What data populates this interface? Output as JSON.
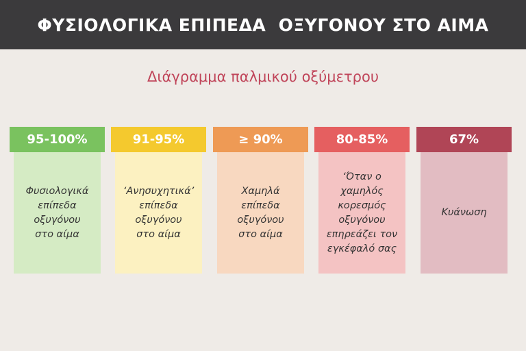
{
  "header": {
    "title": "ΦΥΣΙΟΛΟΓΙΚΑ ΕΠΙΠΕΔΑ  ΟΞΥΓΟΝΟΥ ΣΤΟ ΑΙΜΑ"
  },
  "subtitle": "Διάγραμμα παλμικού οξύμετρου",
  "levels": [
    {
      "range": "95-100%",
      "description": "Φυσιολογικά\nεπίπεδα\nοξυγόνου\nστο αίμα",
      "head_color": "#7ac25f",
      "body_color": "#d5ebc4"
    },
    {
      "range": "91-95%",
      "description": "‘Ανησυχητικά’\nεπίπεδα\nοξυγόνου\nστο αίμα",
      "head_color": "#f4c92e",
      "body_color": "#fcf1c1"
    },
    {
      "range": "≥ 90%",
      "description": "Χαμηλά\nεπίπεδα\nοξυγόνου\nστο αίμα",
      "head_color": "#ee9a55",
      "body_color": "#f8d8c0"
    },
    {
      "range": "80-85%",
      "description": "‘Όταν ο\nχαμηλός\nκορεσμός\nοξυγόνου\nεπηρεάζει τον\nεγκέφαλό σας",
      "head_color": "#e55f60",
      "body_color": "#f4c3c3"
    },
    {
      "range": "67%",
      "description": "Κυάνωση",
      "head_color": "#b04556",
      "body_color": "#e2bcc2"
    }
  ]
}
